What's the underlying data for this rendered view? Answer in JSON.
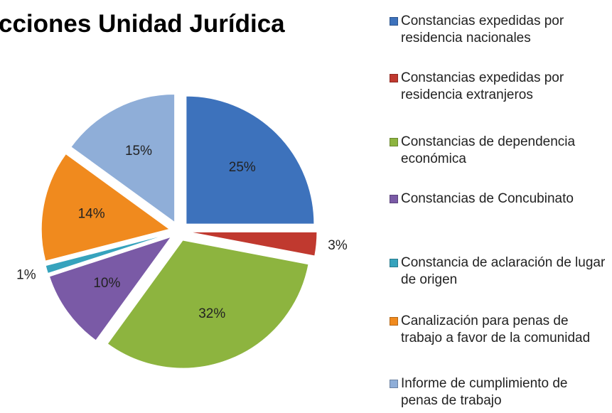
{
  "chart_data": {
    "type": "pie",
    "title": "cciones Unidad Jurídica",
    "categories": [
      "Constancias  expedidas por residencia nacionales",
      "Constancias  expedidas por residencia  extranjeros",
      "Constancias de dependencia económica",
      "Constancias de Concubinato",
      "Constancia de aclaración de lugar de origen",
      "Canalización para penas de trabajo a favor de la comunidad",
      "Informe de cumplimiento de penas de trabajo"
    ],
    "values": [
      25,
      3,
      32,
      10,
      1,
      14,
      15
    ],
    "value_labels": [
      "25%",
      "3%",
      "32%",
      "10%",
      "1%",
      "14%",
      "15%"
    ],
    "colors": [
      "#3d72bc",
      "#c0392f",
      "#8db43f",
      "#7a5aa6",
      "#36a3bd",
      "#f08a1e",
      "#8faed8"
    ],
    "legend": "right"
  }
}
